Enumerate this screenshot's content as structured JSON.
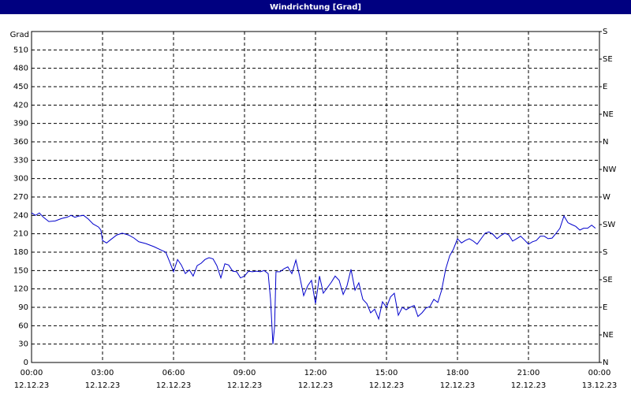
{
  "chart_data": {
    "type": "line",
    "title": "Windrichtung [Grad]",
    "ylabel": "Grad",
    "xlim": [
      0,
      24
    ],
    "ylim": [
      0,
      540
    ],
    "y2lim": [
      0,
      540
    ],
    "grid": true,
    "xticks": [
      {
        "value": 0,
        "label": "00:00"
      },
      {
        "value": 3,
        "label": "03:00"
      },
      {
        "value": 6,
        "label": "06:00"
      },
      {
        "value": 9,
        "label": "09:00"
      },
      {
        "value": 12,
        "label": "12:00"
      },
      {
        "value": 15,
        "label": "15:00"
      },
      {
        "value": 18,
        "label": "18:00"
      },
      {
        "value": 21,
        "label": "21:00"
      },
      {
        "value": 24,
        "label": "00:00"
      }
    ],
    "xtick_dates": [
      "12.12.23",
      "12.12.23",
      "12.12.23",
      "12.12.23",
      "12.12.23",
      "12.12.23",
      "12.12.23",
      "12.12.23",
      "13.12.23"
    ],
    "yticks": [
      0,
      30,
      60,
      90,
      120,
      150,
      180,
      210,
      240,
      270,
      300,
      330,
      360,
      390,
      420,
      450,
      480,
      510
    ],
    "y2ticks": [
      {
        "value": 0,
        "label": "N"
      },
      {
        "value": 45,
        "label": "NE"
      },
      {
        "value": 90,
        "label": "E"
      },
      {
        "value": 135,
        "label": "SE"
      },
      {
        "value": 180,
        "label": "S"
      },
      {
        "value": 225,
        "label": "SW"
      },
      {
        "value": 270,
        "label": "W"
      },
      {
        "value": 315,
        "label": "NW"
      },
      {
        "value": 360,
        "label": "N"
      },
      {
        "value": 405,
        "label": "NE"
      },
      {
        "value": 450,
        "label": "E"
      },
      {
        "value": 495,
        "label": "SE"
      },
      {
        "value": 540,
        "label": "S"
      }
    ],
    "series": [
      {
        "color": "#0000cc",
        "x": [
          0,
          0.17,
          0.33,
          0.5,
          0.73,
          1,
          1.27,
          1.5,
          1.67,
          1.83,
          2,
          2.2,
          2.4,
          2.6,
          2.83,
          2.93,
          3,
          3.17,
          3.33,
          3.6,
          3.83,
          4.1,
          4.33,
          4.53,
          4.83,
          5.17,
          5.5,
          5.67,
          5.83,
          6,
          6.17,
          6.33,
          6.5,
          6.67,
          6.83,
          7,
          7.17,
          7.33,
          7.5,
          7.67,
          7.83,
          8,
          8.17,
          8.33,
          8.5,
          8.67,
          8.83,
          9,
          9.17,
          9.33,
          9.5,
          9.67,
          9.83,
          10,
          10.1,
          10.2,
          10.27,
          10.33,
          10.5,
          10.67,
          10.83,
          11,
          11.17,
          11.33,
          11.5,
          11.67,
          11.83,
          12,
          12.17,
          12.33,
          12.5,
          12.67,
          12.83,
          13,
          13.17,
          13.33,
          13.5,
          13.67,
          13.83,
          14,
          14.17,
          14.33,
          14.5,
          14.67,
          14.83,
          15,
          15.17,
          15.33,
          15.5,
          15.67,
          15.83,
          16,
          16.17,
          16.33,
          16.5,
          16.67,
          16.83,
          17,
          17.17,
          17.33,
          17.5,
          17.67,
          17.83,
          18,
          18.17,
          18.33,
          18.5,
          18.67,
          18.83,
          19,
          19.17,
          19.33,
          19.5,
          19.67,
          19.83,
          20,
          20.17,
          20.33,
          20.5,
          20.67,
          20.83,
          21,
          21.17,
          21.33,
          21.5,
          21.67,
          21.83,
          22,
          22.17,
          22.33,
          22.5,
          22.67,
          22.83,
          23,
          23.17,
          23.33,
          23.5,
          23.67,
          23.83
        ],
        "values": [
          244,
          240,
          244,
          237,
          230,
          231,
          235,
          237,
          240,
          237,
          239,
          240,
          234,
          226,
          221,
          216,
          199,
          195,
          200,
          208,
          211,
          208,
          203,
          197,
          194,
          189,
          183,
          180,
          165,
          148,
          168,
          159,
          145,
          151,
          141,
          158,
          162,
          168,
          171,
          169,
          158,
          138,
          161,
          159,
          149,
          148,
          138,
          141,
          149,
          148,
          149,
          148,
          150,
          145,
          103,
          30,
          58,
          148,
          148,
          153,
          156,
          145,
          167,
          141,
          109,
          125,
          134,
          96,
          141,
          113,
          122,
          131,
          141,
          134,
          111,
          125,
          152,
          118,
          130,
          103,
          96,
          81,
          87,
          71,
          99,
          90,
          107,
          113,
          77,
          90,
          86,
          90,
          93,
          75,
          81,
          89,
          91,
          103,
          98,
          118,
          152,
          174,
          185,
          202,
          195,
          199,
          202,
          198,
          193,
          202,
          211,
          213,
          209,
          202,
          207,
          211,
          208,
          198,
          202,
          206,
          200,
          193,
          197,
          199,
          206,
          206,
          202,
          203,
          211,
          219,
          239,
          228,
          225,
          222,
          216,
          219,
          219,
          224,
          219
        ]
      }
    ]
  }
}
